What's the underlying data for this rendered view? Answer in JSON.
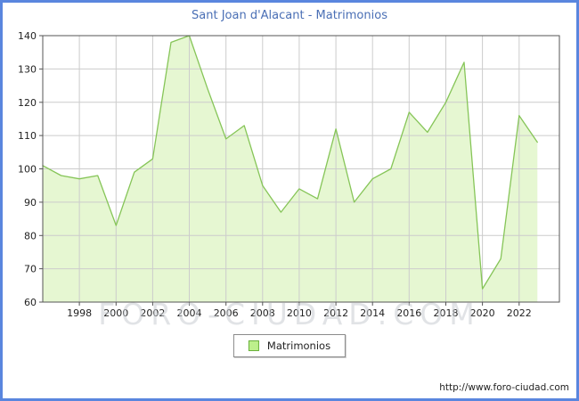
{
  "watermark": "FORO-CIUDAD.COM",
  "footer": {
    "url_text": "http://www.foro-ciudad.com"
  },
  "chart_data": {
    "type": "area",
    "title": "Sant Joan d'Alacant - Matrimonios",
    "legend": "Matrimonios",
    "xlabel": "",
    "ylabel": "",
    "ylim": [
      60,
      140
    ],
    "ytick_step": 10,
    "x_domain": [
      1996,
      2024.2
    ],
    "xticks": [
      1998,
      2000,
      2002,
      2004,
      2006,
      2008,
      2010,
      2012,
      2014,
      2016,
      2018,
      2020,
      2022
    ],
    "years": [
      1996,
      1997,
      1998,
      1999,
      2000,
      2001,
      2002,
      2003,
      2004,
      2005,
      2006,
      2007,
      2008,
      2009,
      2010,
      2011,
      2012,
      2013,
      2014,
      2015,
      2016,
      2017,
      2018,
      2019,
      2020,
      2021,
      2022,
      2023
    ],
    "values": [
      101,
      98,
      97,
      98,
      83,
      99,
      103,
      138,
      140,
      124,
      109,
      113,
      95,
      87,
      94,
      91,
      112,
      90,
      97,
      100,
      117,
      111,
      120,
      132,
      64,
      73,
      116,
      108
    ],
    "grid": true,
    "legend_position": "bottom",
    "line_color": "#86c558",
    "fill_color": "#e6f7d2",
    "grid_color": "#cccccc",
    "axis_color": "#555555",
    "tick_label_color": "#222222",
    "title_color": "#4a6fb5"
  }
}
